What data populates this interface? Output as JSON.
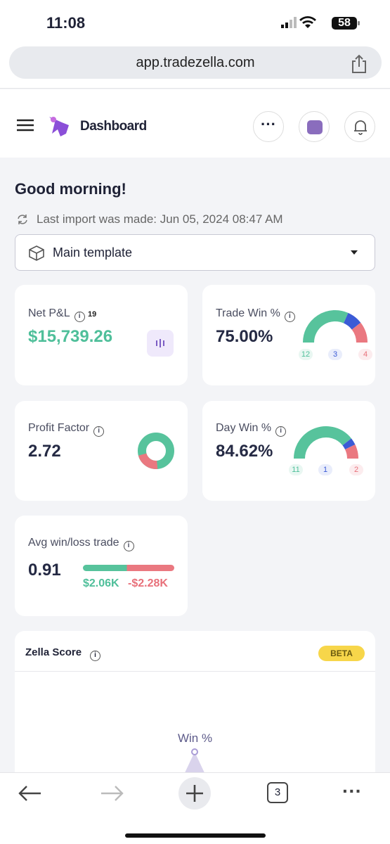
{
  "status_bar": {
    "time": "11:08",
    "battery": "58"
  },
  "browser": {
    "url": "app.tradezella.com",
    "tab_count": "3"
  },
  "header": {
    "title": "Dashboard"
  },
  "greeting": "Good morning!",
  "last_import": "Last import was made: Jun 05, 2024 08:47 AM",
  "template_select": "Main template",
  "cards": {
    "net_pnl": {
      "label": "Net P&L",
      "badge": "19",
      "value": "$15,739.26"
    },
    "trade_win": {
      "label": "Trade Win %",
      "value": "75.00%",
      "win": 12,
      "breakeven": 3,
      "loss": 4
    },
    "profit_factor": {
      "label": "Profit Factor",
      "value": "2.72"
    },
    "day_win": {
      "label": "Day Win %",
      "value": "84.62%",
      "win": 11,
      "breakeven": 1,
      "loss": 2
    },
    "avg_win_loss": {
      "label": "Avg win/loss trade",
      "value": "0.91",
      "avg_win": "$2.06K",
      "avg_loss": "-$2.28K"
    }
  },
  "zella_score": {
    "title": "Zella Score",
    "badge": "BETA",
    "axis_label": "Win %"
  }
}
